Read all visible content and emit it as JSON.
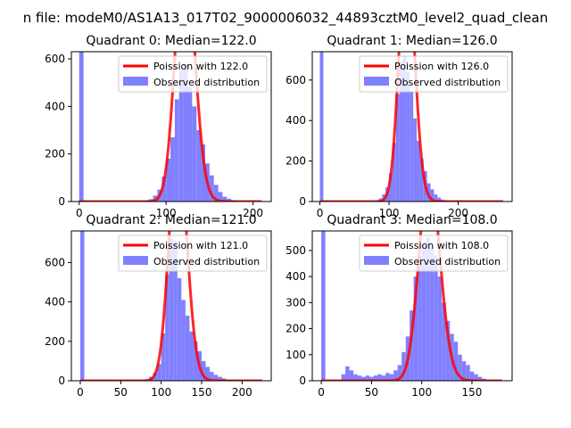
{
  "figure": {
    "suptitle": "n file: modeM0/AS1A13_017T02_9000006032_44893cztM0_level2_quad_clean"
  },
  "colors": {
    "bars": "#8080ff",
    "fit_line": "#ff0000",
    "axes": "#000000",
    "background": "#ffffff",
    "legend_frame": "#cccccc"
  },
  "chart_data": [
    {
      "type": "bar",
      "panel": "quadrant-0",
      "title": "Quadrant 0: Median=122.0",
      "xlabel": "",
      "ylabel": "",
      "xlim": [
        -9,
        221
      ],
      "ylim": [
        0,
        630
      ],
      "xticks": [
        0,
        100,
        200
      ],
      "yticks": [
        0,
        200,
        400,
        600
      ],
      "grid": false,
      "legend_position": "upper-right",
      "series": [
        {
          "name": "Observed distribution",
          "kind": "histogram",
          "bins": [
            [
              0,
              5,
              630
            ],
            [
              70,
              75,
              2
            ],
            [
              75,
              80,
              5
            ],
            [
              80,
              85,
              10
            ],
            [
              85,
              90,
              25
            ],
            [
              90,
              95,
              50
            ],
            [
              95,
              100,
              105
            ],
            [
              100,
              105,
              180
            ],
            [
              105,
              110,
              270
            ],
            [
              110,
              115,
              430
            ],
            [
              115,
              120,
              550
            ],
            [
              120,
              125,
              580
            ],
            [
              125,
              130,
              480
            ],
            [
              130,
              135,
              400
            ],
            [
              135,
              140,
              300
            ],
            [
              140,
              145,
              240
            ],
            [
              145,
              150,
              160
            ],
            [
              150,
              155,
              110
            ],
            [
              155,
              160,
              70
            ],
            [
              160,
              165,
              40
            ],
            [
              165,
              170,
              20
            ],
            [
              170,
              175,
              12
            ],
            [
              175,
              180,
              6
            ],
            [
              180,
              185,
              3
            ]
          ]
        },
        {
          "name": "Poission with 122.0",
          "kind": "poisson",
          "mu": 122.0,
          "total": 5900,
          "bin_width": 5,
          "x_range": [
            0,
            210
          ]
        }
      ]
    },
    {
      "type": "bar",
      "panel": "quadrant-1",
      "title": "Quadrant 1: Median=126.0",
      "xlabel": "",
      "ylabel": "",
      "xlim": [
        -11,
        278
      ],
      "ylim": [
        0,
        740
      ],
      "xticks": [
        0,
        100,
        200
      ],
      "yticks": [
        0,
        200,
        400,
        600
      ],
      "grid": false,
      "legend_position": "upper-right",
      "series": [
        {
          "name": "Observed distribution",
          "kind": "histogram",
          "bins": [
            [
              0,
              5,
              740
            ],
            [
              80,
              85,
              5
            ],
            [
              85,
              90,
              15
            ],
            [
              90,
              95,
              35
            ],
            [
              95,
              100,
              70
            ],
            [
              100,
              105,
              140
            ],
            [
              105,
              110,
              290
            ],
            [
              110,
              115,
              530
            ],
            [
              115,
              120,
              690
            ],
            [
              120,
              125,
              720
            ],
            [
              125,
              130,
              640
            ],
            [
              130,
              135,
              540
            ],
            [
              135,
              140,
              410
            ],
            [
              140,
              145,
              300
            ],
            [
              145,
              150,
              210
            ],
            [
              150,
              155,
              150
            ],
            [
              155,
              160,
              90
            ],
            [
              160,
              165,
              60
            ],
            [
              165,
              170,
              35
            ],
            [
              170,
              175,
              20
            ],
            [
              175,
              180,
              10
            ],
            [
              180,
              185,
              5
            ]
          ]
        },
        {
          "name": "Poission with 126.0",
          "kind": "poisson",
          "mu": 126.0,
          "total": 6900,
          "bin_width": 5,
          "x_range": [
            0,
            265
          ]
        }
      ]
    },
    {
      "type": "bar",
      "panel": "quadrant-2",
      "title": "Quadrant 2: Median=121.0",
      "xlabel": "",
      "ylabel": "",
      "xlim": [
        -11,
        236
      ],
      "ylim": [
        0,
        760
      ],
      "xticks": [
        0,
        50,
        100,
        150,
        200
      ],
      "yticks": [
        0,
        200,
        400,
        600
      ],
      "grid": false,
      "legend_position": "upper-right",
      "series": [
        {
          "name": "Observed distribution",
          "kind": "histogram",
          "bins": [
            [
              0,
              5,
              760
            ],
            [
              75,
              80,
              3
            ],
            [
              80,
              85,
              8
            ],
            [
              85,
              90,
              20
            ],
            [
              90,
              95,
              40
            ],
            [
              95,
              100,
              85
            ],
            [
              100,
              105,
              240
            ],
            [
              105,
              110,
              540
            ],
            [
              110,
              115,
              720
            ],
            [
              115,
              120,
              710
            ],
            [
              120,
              125,
              520
            ],
            [
              125,
              130,
              410
            ],
            [
              130,
              135,
              330
            ],
            [
              135,
              140,
              250
            ],
            [
              140,
              145,
              200
            ],
            [
              145,
              150,
              150
            ],
            [
              150,
              155,
              100
            ],
            [
              155,
              160,
              70
            ],
            [
              160,
              165,
              45
            ],
            [
              165,
              170,
              30
            ],
            [
              170,
              175,
              20
            ],
            [
              175,
              180,
              12
            ],
            [
              180,
              185,
              6
            ],
            [
              185,
              190,
              3
            ]
          ]
        },
        {
          "name": "Poission with 121.0",
          "kind": "poisson",
          "mu": 121.0,
          "total": 6580,
          "bin_width": 5,
          "x_range": [
            0,
            225
          ]
        }
      ]
    },
    {
      "type": "bar",
      "panel": "quadrant-3",
      "title": "Quadrant 3: Median=108.0",
      "xlabel": "",
      "ylabel": "",
      "xlim": [
        -9,
        190
      ],
      "ylim": [
        0,
        575
      ],
      "xticks": [
        0,
        50,
        100,
        150
      ],
      "yticks": [
        0,
        100,
        200,
        300,
        400,
        500
      ],
      "grid": false,
      "legend_position": "upper-right",
      "series": [
        {
          "name": "Observed distribution",
          "kind": "histogram",
          "bins": [
            [
              0,
              4,
              575
            ],
            [
              20,
              24,
              25
            ],
            [
              24,
              28,
              55
            ],
            [
              28,
              32,
              40
            ],
            [
              32,
              36,
              25
            ],
            [
              36,
              40,
              20
            ],
            [
              40,
              44,
              15
            ],
            [
              44,
              48,
              20
            ],
            [
              48,
              52,
              15
            ],
            [
              52,
              56,
              20
            ],
            [
              56,
              60,
              25
            ],
            [
              60,
              64,
              20
            ],
            [
              64,
              68,
              30
            ],
            [
              68,
              72,
              25
            ],
            [
              72,
              76,
              40
            ],
            [
              76,
              80,
              60
            ],
            [
              80,
              84,
              110
            ],
            [
              84,
              88,
              170
            ],
            [
              88,
              92,
              270
            ],
            [
              92,
              96,
              400
            ],
            [
              96,
              100,
              480
            ],
            [
              100,
              104,
              520
            ],
            [
              104,
              108,
              550
            ],
            [
              108,
              112,
              510
            ],
            [
              112,
              116,
              480
            ],
            [
              116,
              120,
              400
            ],
            [
              120,
              124,
              300
            ],
            [
              124,
              128,
              230
            ],
            [
              128,
              132,
              180
            ],
            [
              132,
              136,
              150
            ],
            [
              136,
              140,
              100
            ],
            [
              140,
              144,
              75
            ],
            [
              144,
              148,
              60
            ],
            [
              148,
              152,
              35
            ],
            [
              152,
              156,
              25
            ],
            [
              156,
              160,
              15
            ],
            [
              160,
              164,
              8
            ],
            [
              164,
              168,
              4
            ]
          ]
        },
        {
          "name": "Poission with 108.0",
          "kind": "poisson",
          "mu": 108.0,
          "total": 5180,
          "bin_width": 4,
          "x_range": [
            0,
            180
          ]
        }
      ]
    }
  ]
}
